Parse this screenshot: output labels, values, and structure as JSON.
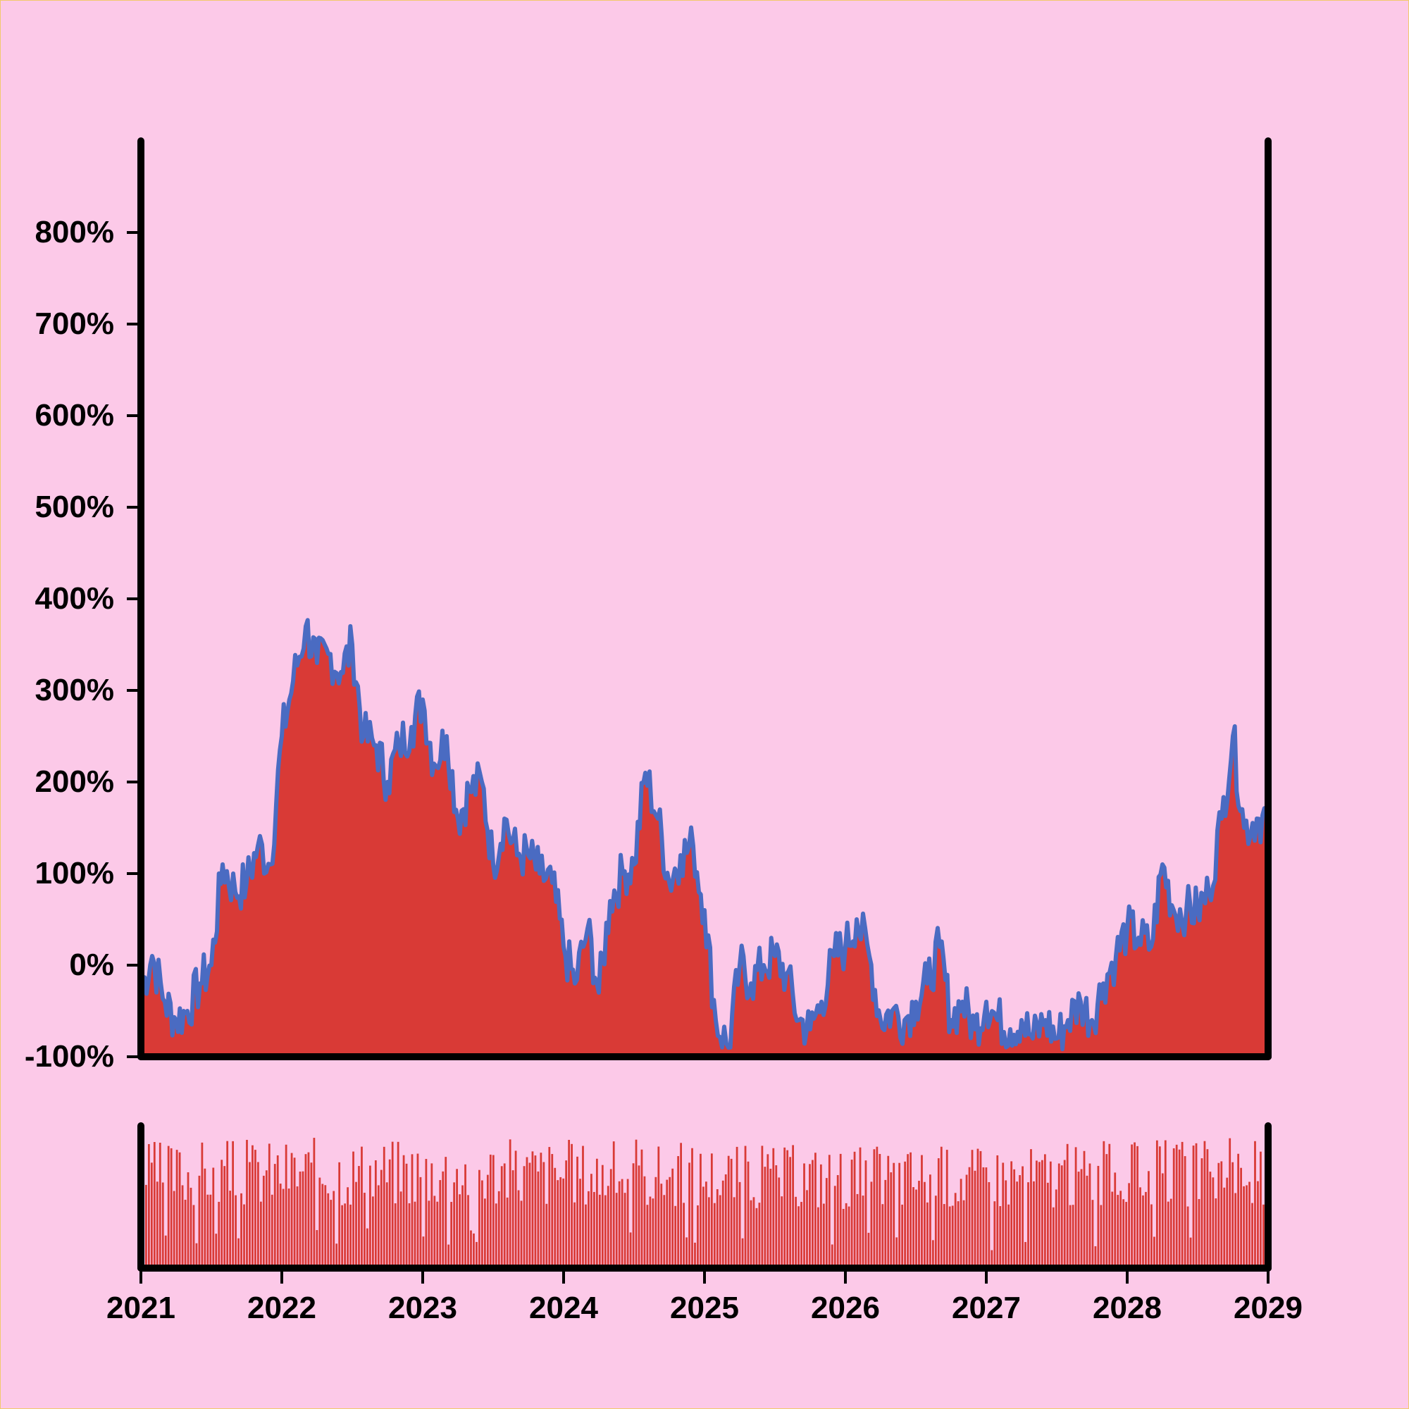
{
  "chart_data": {
    "type": "area",
    "x_axis": {
      "ticks": [
        "2021",
        "2022",
        "2023",
        "2024",
        "2025",
        "2026",
        "2027",
        "2028",
        "2029"
      ],
      "range": [
        "2021",
        "2029"
      ]
    },
    "y_axis": {
      "ticks": [
        "-100%",
        "0%",
        "100%",
        "200%",
        "300%",
        "400%",
        "500%",
        "600%",
        "700%",
        "800%"
      ],
      "range": [
        -100,
        900
      ]
    },
    "grid": false,
    "colors": {
      "background": "#fcc9e8",
      "area_fill": "#d93a36",
      "line": "#4a6bc2",
      "axis": "#000000",
      "volume_bars": "#d93a36"
    },
    "series": [
      {
        "x": [
          2021.0,
          2021.08,
          2021.17,
          2021.25,
          2021.33,
          2021.42,
          2021.5,
          2021.58,
          2021.67,
          2021.75,
          2021.83,
          2021.92,
          2022.0,
          2022.08,
          2022.17,
          2022.25,
          2022.33,
          2022.42,
          2022.5,
          2022.58,
          2022.67,
          2022.75,
          2022.83,
          2022.92,
          2023.0,
          2023.08,
          2023.17,
          2023.25,
          2023.33,
          2023.42,
          2023.5,
          2023.58,
          2023.67,
          2023.75,
          2023.83,
          2023.92,
          2024.0,
          2024.08,
          2024.17,
          2024.25,
          2024.33,
          2024.42,
          2024.5,
          2024.58,
          2024.67,
          2024.75,
          2024.83,
          2024.92,
          2025.0,
          2025.08,
          2025.17,
          2025.25,
          2025.33,
          2025.42,
          2025.5,
          2025.58,
          2025.67,
          2025.75,
          2025.83,
          2025.92,
          2026.0,
          2026.08,
          2026.17,
          2026.25,
          2026.33,
          2026.42,
          2026.5,
          2026.58,
          2026.67,
          2026.75,
          2026.83,
          2026.92,
          2027.0,
          2027.08,
          2027.17,
          2027.25,
          2027.33,
          2027.42,
          2027.5,
          2027.58,
          2027.67,
          2027.75,
          2027.83,
          2027.92,
          2028.0,
          2028.08,
          2028.17,
          2028.25,
          2028.33,
          2028.42,
          2028.5,
          2028.58,
          2028.67,
          2028.75,
          2028.83,
          2028.92,
          2029.0
        ],
        "values": [
          -30,
          10,
          -40,
          -60,
          -50,
          -20,
          0,
          110,
          80,
          90,
          130,
          110,
          250,
          310,
          370,
          330,
          340,
          320,
          350,
          250,
          240,
          200,
          240,
          260,
          290,
          220,
          250,
          160,
          190,
          200,
          110,
          160,
          120,
          120,
          100,
          90,
          20,
          -20,
          40,
          -30,
          70,
          100,
          110,
          210,
          160,
          90,
          120,
          130,
          60,
          -60,
          -90,
          0,
          -20,
          0,
          10,
          -10,
          -60,
          -70,
          -40,
          10,
          20,
          50,
          10,
          -60,
          -50,
          -60,
          -40,
          -20,
          20,
          -60,
          -40,
          -70,
          -40,
          -60,
          -70,
          -60,
          -80,
          -60,
          -80,
          -60,
          -40,
          -60,
          -20,
          10,
          40,
          30,
          20,
          110,
          60,
          60,
          60,
          80,
          160,
          250,
          150,
          160,
          160
        ]
      }
    ],
    "volume_panel": {
      "type": "bar",
      "y_ticks": []
    }
  }
}
